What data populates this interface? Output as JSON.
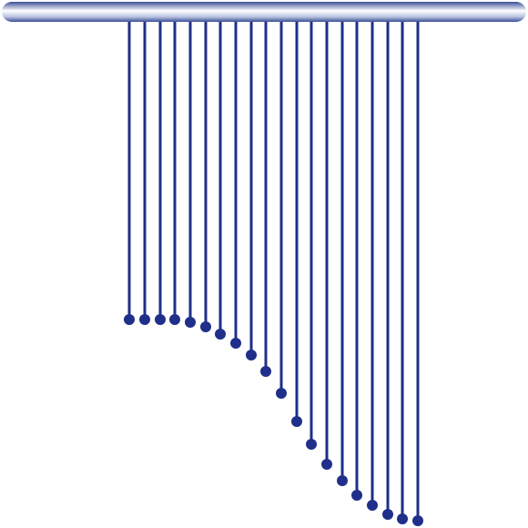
{
  "colors": {
    "rod_dark": "#3b4f96",
    "rod_light": "#ffffff",
    "rod_mid": "#b9c2e2",
    "strand": "#1f2f8a",
    "bead": "#1f2f8a"
  },
  "curtain": {
    "strand_count": 20
  }
}
